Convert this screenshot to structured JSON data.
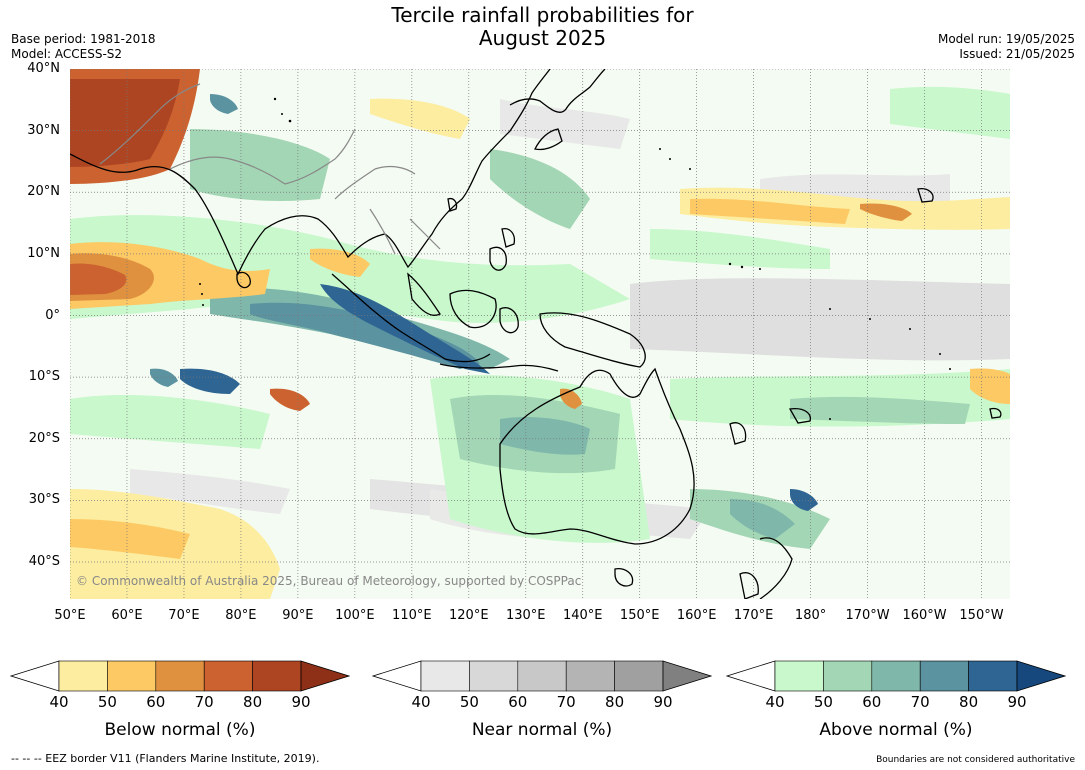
{
  "header": {
    "title_line1": "Tercile rainfall probabilities for",
    "title_line2": "August 2025",
    "base_period": "Base period: 1981-2018",
    "model": "Model: ACCESS-S2",
    "model_run": "Model run: 19/05/2025",
    "issued": "Issued: 21/05/2025"
  },
  "map": {
    "copyright": "© Commonwealth of Australia 2025, Bureau of Meteorology, supported by COSPPac",
    "lat_labels": [
      "40°N",
      "30°N",
      "20°N",
      "10°N",
      "0°",
      "10°S",
      "20°S",
      "30°S",
      "40°S"
    ],
    "lon_labels": [
      "50°E",
      "60°E",
      "70°E",
      "80°E",
      "90°E",
      "100°E",
      "110°E",
      "120°E",
      "130°E",
      "140°E",
      "150°E",
      "160°E",
      "170°E",
      "180°",
      "170°W",
      "160°W",
      "150°W"
    ],
    "lon_range": [
      50,
      215
    ],
    "lat_range": [
      -46,
      40
    ]
  },
  "colorbars": [
    {
      "title": "Below normal (%)",
      "ticks": [
        "40",
        "50",
        "60",
        "70",
        "80",
        "90"
      ],
      "colors": [
        "#fdeda0",
        "#fdc964",
        "#e0913f",
        "#cb6230",
        "#ad4523",
        "#8e3018"
      ]
    },
    {
      "title": "Near normal (%)",
      "ticks": [
        "40",
        "50",
        "60",
        "70",
        "80",
        "90"
      ],
      "colors": [
        "#e8e8e8",
        "#d8d8d8",
        "#c8c8c8",
        "#b4b4b4",
        "#a0a0a0",
        "#808080"
      ]
    },
    {
      "title": "Above normal (%)",
      "ticks": [
        "40",
        "50",
        "60",
        "70",
        "80",
        "90"
      ],
      "colors": [
        "#c8f8cc",
        "#a3d6b4",
        "#7fb8ab",
        "#5b93a0",
        "#2e6592",
        "#16487d"
      ]
    }
  ],
  "footer": {
    "eez": "--  --  -- EEZ border V11 (Flanders Marine Institute, 2019).",
    "boundaries": "Boundaries are not considered authoritative"
  }
}
